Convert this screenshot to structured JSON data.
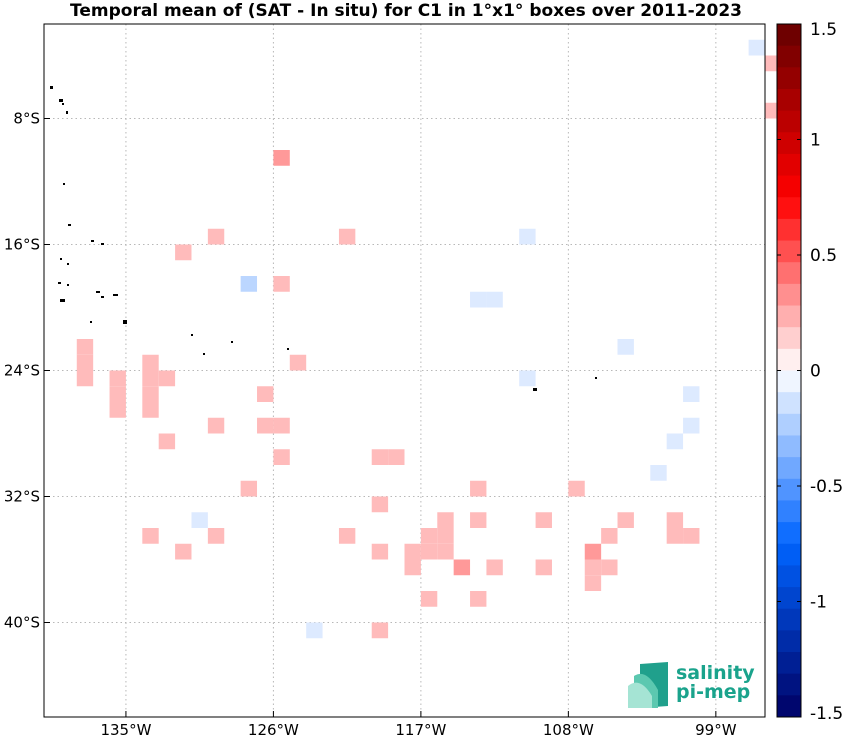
{
  "chart_data": {
    "type": "heatmap",
    "title": "Temporal mean of (SAT - In situ) for C1 in 1°x1° boxes over 2011-2023",
    "xlabel": "",
    "ylabel": "",
    "x_unit": "degrees longitude (negative = W)",
    "y_unit": "degrees latitude (negative = S)",
    "xlim": [
      -140,
      -96
    ],
    "ylim": [
      -46,
      -2
    ],
    "x_ticks": [
      {
        "value": -135,
        "label": "135°W"
      },
      {
        "value": -126,
        "label": "126°W"
      },
      {
        "value": -117,
        "label": "117°W"
      },
      {
        "value": -108,
        "label": "108°W"
      },
      {
        "value": -99,
        "label": "99°W"
      }
    ],
    "y_ticks": [
      {
        "value": -8,
        "label": "8°S"
      },
      {
        "value": -16,
        "label": "16°S"
      },
      {
        "value": -24,
        "label": "24°S"
      },
      {
        "value": -32,
        "label": "32°S"
      },
      {
        "value": -40,
        "label": "40°S"
      }
    ],
    "grid": true,
    "colorbar": {
      "placement": "right",
      "range": [
        -1.5,
        1.5
      ],
      "levels": 32,
      "ticks": [
        {
          "value": 1.5,
          "label": "1.5"
        },
        {
          "value": 1,
          "label": "1"
        },
        {
          "value": 0.5,
          "label": "0.5"
        },
        {
          "value": 0,
          "label": "0"
        },
        {
          "value": -0.5,
          "label": "-0.5"
        },
        {
          "value": -1,
          "label": "-1"
        },
        {
          "value": -1.5,
          "label": "-1.5"
        }
      ]
    },
    "cells_lon_lat_value": [
      [
        -96.5,
        -3.5,
        -0.1
      ],
      [
        -95.5,
        -4.5,
        0.2
      ],
      [
        -95.5,
        -7.5,
        0.2
      ],
      [
        -125.5,
        -10.5,
        0.3
      ],
      [
        -129.5,
        -15.5,
        0.2
      ],
      [
        -131.5,
        -16.5,
        0.2
      ],
      [
        -121.5,
        -15.5,
        0.2
      ],
      [
        -110.5,
        -15.5,
        -0.1
      ],
      [
        -127.5,
        -18.5,
        -0.2
      ],
      [
        -125.5,
        -18.5,
        0.2
      ],
      [
        -112.5,
        -19.5,
        -0.1
      ],
      [
        -113.5,
        -19.5,
        -0.1
      ],
      [
        -137.5,
        -22.5,
        0.2
      ],
      [
        -137.5,
        -23.5,
        0.2
      ],
      [
        -137.5,
        -24.5,
        0.2
      ],
      [
        -104.5,
        -22.5,
        -0.1
      ],
      [
        -133.5,
        -23.5,
        0.2
      ],
      [
        -133.5,
        -24.5,
        0.2
      ],
      [
        -132.5,
        -24.5,
        0.2
      ],
      [
        -124.5,
        -23.5,
        0.2
      ],
      [
        -135.5,
        -24.5,
        0.2
      ],
      [
        -135.5,
        -25.5,
        0.2
      ],
      [
        -135.5,
        -26.5,
        0.2
      ],
      [
        -133.5,
        -25.5,
        0.2
      ],
      [
        -133.5,
        -26.5,
        0.2
      ],
      [
        -110.5,
        -24.5,
        -0.1
      ],
      [
        -126.5,
        -25.5,
        0.2
      ],
      [
        -100.5,
        -25.5,
        -0.1
      ],
      [
        -100.5,
        -27.5,
        -0.1
      ],
      [
        -125.5,
        -27.5,
        0.2
      ],
      [
        -126.5,
        -27.5,
        0.2
      ],
      [
        -129.5,
        -27.5,
        0.2
      ],
      [
        -132.5,
        -28.5,
        0.2
      ],
      [
        -101.5,
        -28.5,
        -0.1
      ],
      [
        -125.5,
        -29.5,
        0.2
      ],
      [
        -119.5,
        -29.5,
        0.2
      ],
      [
        -118.5,
        -29.5,
        0.2
      ],
      [
        -102.5,
        -30.5,
        -0.1
      ],
      [
        -127.5,
        -31.5,
        0.2
      ],
      [
        -113.5,
        -31.5,
        0.2
      ],
      [
        -107.5,
        -31.5,
        0.2
      ],
      [
        -119.5,
        -32.5,
        0.2
      ],
      [
        -130.5,
        -33.5,
        -0.1
      ],
      [
        -115.5,
        -33.5,
        0.2
      ],
      [
        -113.5,
        -33.5,
        0.2
      ],
      [
        -109.5,
        -33.5,
        0.2
      ],
      [
        -104.5,
        -33.5,
        0.2
      ],
      [
        -101.5,
        -33.5,
        0.2
      ],
      [
        -133.5,
        -34.5,
        0.2
      ],
      [
        -129.5,
        -34.5,
        0.2
      ],
      [
        -121.5,
        -34.5,
        0.2
      ],
      [
        -116.5,
        -34.5,
        0.2
      ],
      [
        -115.5,
        -34.5,
        0.2
      ],
      [
        -105.5,
        -34.5,
        0.2
      ],
      [
        -101.5,
        -34.5,
        0.2
      ],
      [
        -100.5,
        -34.5,
        0.2
      ],
      [
        -131.5,
        -35.5,
        0.2
      ],
      [
        -119.5,
        -35.5,
        0.2
      ],
      [
        -117.5,
        -35.5,
        0.2
      ],
      [
        -116.5,
        -35.5,
        0.2
      ],
      [
        -115.5,
        -35.5,
        0.2
      ],
      [
        -106.5,
        -35.5,
        0.3
      ],
      [
        -117.5,
        -36.5,
        0.2
      ],
      [
        -114.5,
        -36.5,
        0.3
      ],
      [
        -112.5,
        -36.5,
        0.2
      ],
      [
        -109.5,
        -36.5,
        0.2
      ],
      [
        -106.5,
        -36.5,
        0.2
      ],
      [
        -105.5,
        -36.5,
        0.2
      ],
      [
        -106.5,
        -37.5,
        0.2
      ],
      [
        -116.5,
        -38.5,
        0.2
      ],
      [
        -113.5,
        -38.5,
        0.2
      ],
      [
        -123.5,
        -40.5,
        -0.1
      ],
      [
        -119.5,
        -40.5,
        0.2
      ]
    ]
  },
  "logo": {
    "line1": "salinity",
    "line2": "pi-mep"
  }
}
